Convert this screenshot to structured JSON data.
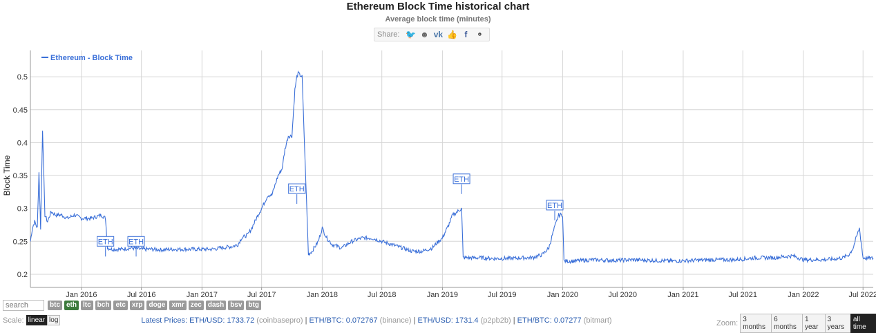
{
  "header": {
    "title": "Ethereum Block Time historical chart",
    "subtitle": "Average block time (minutes)",
    "share_label": "Share:",
    "share_icons": [
      "twitter-icon",
      "reddit-icon",
      "vk-icon",
      "like-icon",
      "facebook-icon",
      "weibo-icon"
    ]
  },
  "chart_data": {
    "type": "line",
    "title": "",
    "xlabel": "",
    "ylabel": "Block Time",
    "legend": {
      "placement": "top-left",
      "entries": [
        "Ethereum - Block Time"
      ]
    },
    "grid": true,
    "ylim": [
      0.18,
      0.54
    ],
    "yticks": [
      0.2,
      0.25,
      0.3,
      0.35,
      0.4,
      0.45,
      0.5
    ],
    "ytick_labels": [
      "0.2",
      "0.25",
      "0.3",
      "0.35",
      "0.4",
      "0.45",
      "0.5"
    ],
    "xlim": [
      "2015-07-30",
      "2022-08-01"
    ],
    "xticks": [
      "2016-01-01",
      "2016-07-01",
      "2017-01-01",
      "2017-07-01",
      "2018-01-01",
      "2018-07-01",
      "2019-01-01",
      "2019-07-01",
      "2020-01-01",
      "2020-07-01",
      "2021-01-01",
      "2021-07-01",
      "2022-01-01",
      "2022-07-01"
    ],
    "xtick_labels": [
      "Jan 2016",
      "Jul 2016",
      "Jan 2017",
      "Jul 2017",
      "Jan 2018",
      "Jul 2018",
      "Jan 2019",
      "Jul 2019",
      "Jan 2020",
      "Jul 2020",
      "Jan 2021",
      "Jul 2021",
      "Jan 2022",
      "Jul 2022"
    ],
    "series": [
      {
        "name": "Ethereum - Block Time",
        "color": "#3a6fd8",
        "x": [
          "2015-07-30",
          "2015-08-05",
          "2015-08-12",
          "2015-08-20",
          "2015-08-25",
          "2015-08-30",
          "2015-09-05",
          "2015-09-12",
          "2015-09-20",
          "2015-10-01",
          "2015-10-15",
          "2015-11-01",
          "2015-11-20",
          "2015-12-10",
          "2016-01-01",
          "2016-02-01",
          "2016-03-01",
          "2016-03-14",
          "2016-03-20",
          "2016-04-01",
          "2016-05-01",
          "2016-06-01",
          "2016-07-01",
          "2016-08-01",
          "2016-09-01",
          "2016-10-01",
          "2016-11-01",
          "2016-12-01",
          "2017-01-01",
          "2017-02-01",
          "2017-03-01",
          "2017-04-01",
          "2017-04-20",
          "2017-05-01",
          "2017-05-20",
          "2017-06-01",
          "2017-06-20",
          "2017-07-01",
          "2017-07-20",
          "2017-08-01",
          "2017-08-20",
          "2017-09-01",
          "2017-09-10",
          "2017-09-20",
          "2017-10-01",
          "2017-10-10",
          "2017-10-16",
          "2017-10-20",
          "2017-11-01",
          "2017-11-20",
          "2017-12-01",
          "2017-12-20",
          "2018-01-01",
          "2018-01-15",
          "2018-02-01",
          "2018-03-01",
          "2018-04-01",
          "2018-05-01",
          "2018-06-01",
          "2018-07-01",
          "2018-08-01",
          "2018-09-01",
          "2018-10-01",
          "2018-11-01",
          "2018-12-01",
          "2018-12-20",
          "2019-01-01",
          "2019-01-20",
          "2019-02-01",
          "2019-02-15",
          "2019-02-28",
          "2019-03-05",
          "2019-04-01",
          "2019-05-01",
          "2019-06-01",
          "2019-07-01",
          "2019-08-01",
          "2019-09-01",
          "2019-10-01",
          "2019-11-01",
          "2019-11-20",
          "2019-12-01",
          "2019-12-10",
          "2019-12-20",
          "2020-01-01",
          "2020-01-05",
          "2020-02-01",
          "2020-04-01",
          "2020-06-01",
          "2020-08-01",
          "2020-10-01",
          "2020-12-01",
          "2021-02-01",
          "2021-04-01",
          "2021-06-01",
          "2021-07-01",
          "2021-08-05",
          "2021-10-01",
          "2021-12-01",
          "2022-01-01",
          "2022-03-01",
          "2022-04-01",
          "2022-05-01",
          "2022-05-20",
          "2022-06-01",
          "2022-06-10",
          "2022-06-20",
          "2022-07-01",
          "2022-08-01"
        ],
        "y": [
          0.25,
          0.27,
          0.28,
          0.27,
          0.355,
          0.27,
          0.42,
          0.29,
          0.28,
          0.295,
          0.29,
          0.29,
          0.285,
          0.29,
          0.285,
          0.285,
          0.29,
          0.285,
          0.24,
          0.238,
          0.238,
          0.24,
          0.238,
          0.238,
          0.237,
          0.238,
          0.238,
          0.238,
          0.238,
          0.238,
          0.24,
          0.242,
          0.245,
          0.255,
          0.26,
          0.27,
          0.29,
          0.3,
          0.32,
          0.32,
          0.35,
          0.36,
          0.39,
          0.41,
          0.41,
          0.48,
          0.5,
          0.505,
          0.5,
          0.23,
          0.235,
          0.25,
          0.27,
          0.255,
          0.245,
          0.24,
          0.25,
          0.255,
          0.255,
          0.25,
          0.245,
          0.24,
          0.235,
          0.235,
          0.24,
          0.25,
          0.255,
          0.275,
          0.29,
          0.295,
          0.3,
          0.225,
          0.225,
          0.225,
          0.224,
          0.224,
          0.224,
          0.225,
          0.225,
          0.23,
          0.24,
          0.26,
          0.275,
          0.29,
          0.29,
          0.22,
          0.22,
          0.222,
          0.221,
          0.222,
          0.221,
          0.22,
          0.221,
          0.222,
          0.222,
          0.223,
          0.225,
          0.225,
          0.228,
          0.222,
          0.222,
          0.223,
          0.225,
          0.23,
          0.24,
          0.255,
          0.27,
          0.225,
          0.224
        ]
      }
    ],
    "annotations": [
      {
        "text": "ETH",
        "x": "2016-03-14",
        "y": 0.25
      },
      {
        "text": "ETH",
        "x": "2016-06-15",
        "y": 0.25
      },
      {
        "text": "ETH",
        "x": "2017-10-16",
        "y": 0.33
      },
      {
        "text": "ETH",
        "x": "2019-02-28",
        "y": 0.345
      },
      {
        "text": "ETH",
        "x": "2019-12-08",
        "y": 0.305
      }
    ]
  },
  "controls": {
    "search_placeholder": "search",
    "coins": [
      "btc",
      "eth",
      "ltc",
      "bch",
      "etc",
      "xrp",
      "doge",
      "xmr",
      "zec",
      "dash",
      "bsv",
      "btg"
    ],
    "active_coin": "eth",
    "scale_label": "Scale:",
    "scale_options": [
      "linear",
      "log"
    ],
    "active_scale": "linear",
    "zoom_label": "Zoom:",
    "zoom_options": [
      "3 months",
      "6 months",
      "1 year",
      "3 years",
      "all time"
    ],
    "active_zoom": "all time"
  },
  "prices": {
    "label": "Latest Prices:",
    "items": [
      {
        "pair": "ETH/USD: 1733.72",
        "source": "(coinbasepro)"
      },
      {
        "pair": "ETH/BTC: 0.072767",
        "source": "(binance)"
      },
      {
        "pair": "ETH/USD: 1731.4",
        "source": "(p2pb2b)"
      },
      {
        "pair": "ETH/BTC: 0.07277",
        "source": "(bitmart)"
      }
    ]
  }
}
